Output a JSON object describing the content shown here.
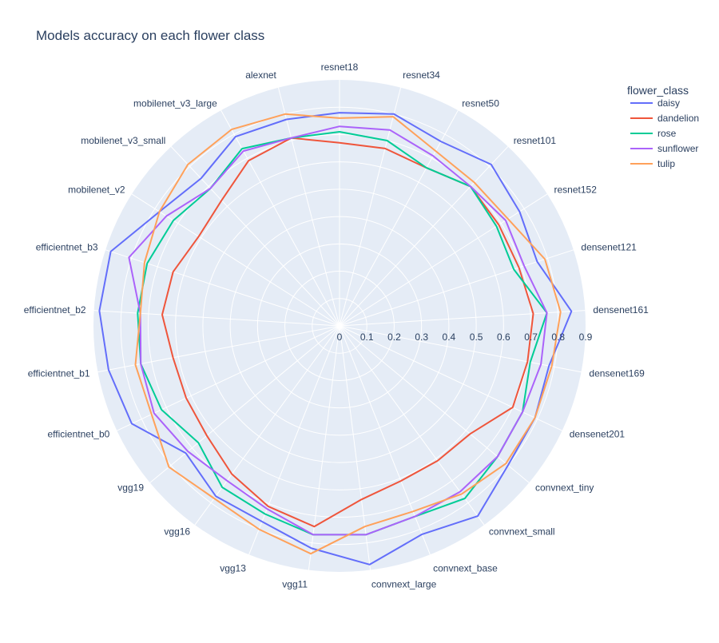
{
  "chart_data": {
    "type": "line",
    "subtype": "radar",
    "title": "Models accuracy on each flower class",
    "categories": [
      "resnet18",
      "resnet34",
      "resnet50",
      "resnet101",
      "resnet152",
      "densenet121",
      "densenet161",
      "densenet169",
      "densenet201",
      "convnext_tiny",
      "convnext_small",
      "convnext_base",
      "convnext_large",
      "vgg11",
      "vgg13",
      "vgg16",
      "vgg19",
      "efficientnet_b0",
      "efficientnet_b1",
      "efficientnet_b2",
      "efficientnet_b3",
      "mobilenet_v2",
      "mobilenet_v3_small",
      "mobilenet_v3_large",
      "alexnet"
    ],
    "radial_range": [
      0,
      0.9
    ],
    "radial_ticks": [
      "0",
      "0.1",
      "0.2",
      "0.3",
      "0.4",
      "0.5",
      "0.6",
      "0.7",
      "0.8",
      "0.9"
    ],
    "legend_title": "flower_class",
    "legend_position": "top-right",
    "grid": true,
    "series": [
      {
        "name": "daisy",
        "color": "#636efa",
        "values": [
          0.78,
          0.8,
          0.77,
          0.81,
          0.78,
          0.76,
          0.85,
          0.78,
          0.79,
          0.8,
          0.86,
          0.82,
          0.88,
          0.82,
          0.77,
          0.77,
          0.73,
          0.84,
          0.86,
          0.88,
          0.88,
          0.78,
          0.74,
          0.79,
          0.78
        ]
      },
      {
        "name": "dandelion",
        "color": "#ef553b",
        "values": [
          0.67,
          0.67,
          0.66,
          0.7,
          0.69,
          0.69,
          0.71,
          0.7,
          0.7,
          0.62,
          0.61,
          0.61,
          0.64,
          0.74,
          0.71,
          0.67,
          0.63,
          0.62,
          0.62,
          0.65,
          0.64,
          0.61,
          0.63,
          0.69,
          0.71
        ]
      },
      {
        "name": "rose",
        "color": "#00cc96",
        "values": [
          0.71,
          0.7,
          0.66,
          0.7,
          0.68,
          0.67,
          0.76,
          0.71,
          0.74,
          0.75,
          0.78,
          0.75,
          0.77,
          0.77,
          0.74,
          0.73,
          0.67,
          0.72,
          0.74,
          0.74,
          0.74,
          0.72,
          0.69,
          0.74,
          0.71
        ]
      },
      {
        "name": "sunflower",
        "color": "#ab63fa",
        "values": [
          0.73,
          0.74,
          0.71,
          0.7,
          0.72,
          0.71,
          0.76,
          0.75,
          0.74,
          0.75,
          0.75,
          0.75,
          0.77,
          0.77,
          0.72,
          0.7,
          0.72,
          0.75,
          0.74,
          0.73,
          0.81,
          0.75,
          0.69,
          0.73,
          0.71
        ]
      },
      {
        "name": "tulip",
        "color": "#ffa15a",
        "values": [
          0.76,
          0.79,
          0.73,
          0.72,
          0.73,
          0.79,
          0.81,
          0.79,
          0.79,
          0.79,
          0.76,
          0.73,
          0.74,
          0.84,
          0.8,
          0.78,
          0.81,
          0.76,
          0.76,
          0.73,
          0.75,
          0.78,
          0.81,
          0.82,
          0.8
        ]
      }
    ]
  }
}
